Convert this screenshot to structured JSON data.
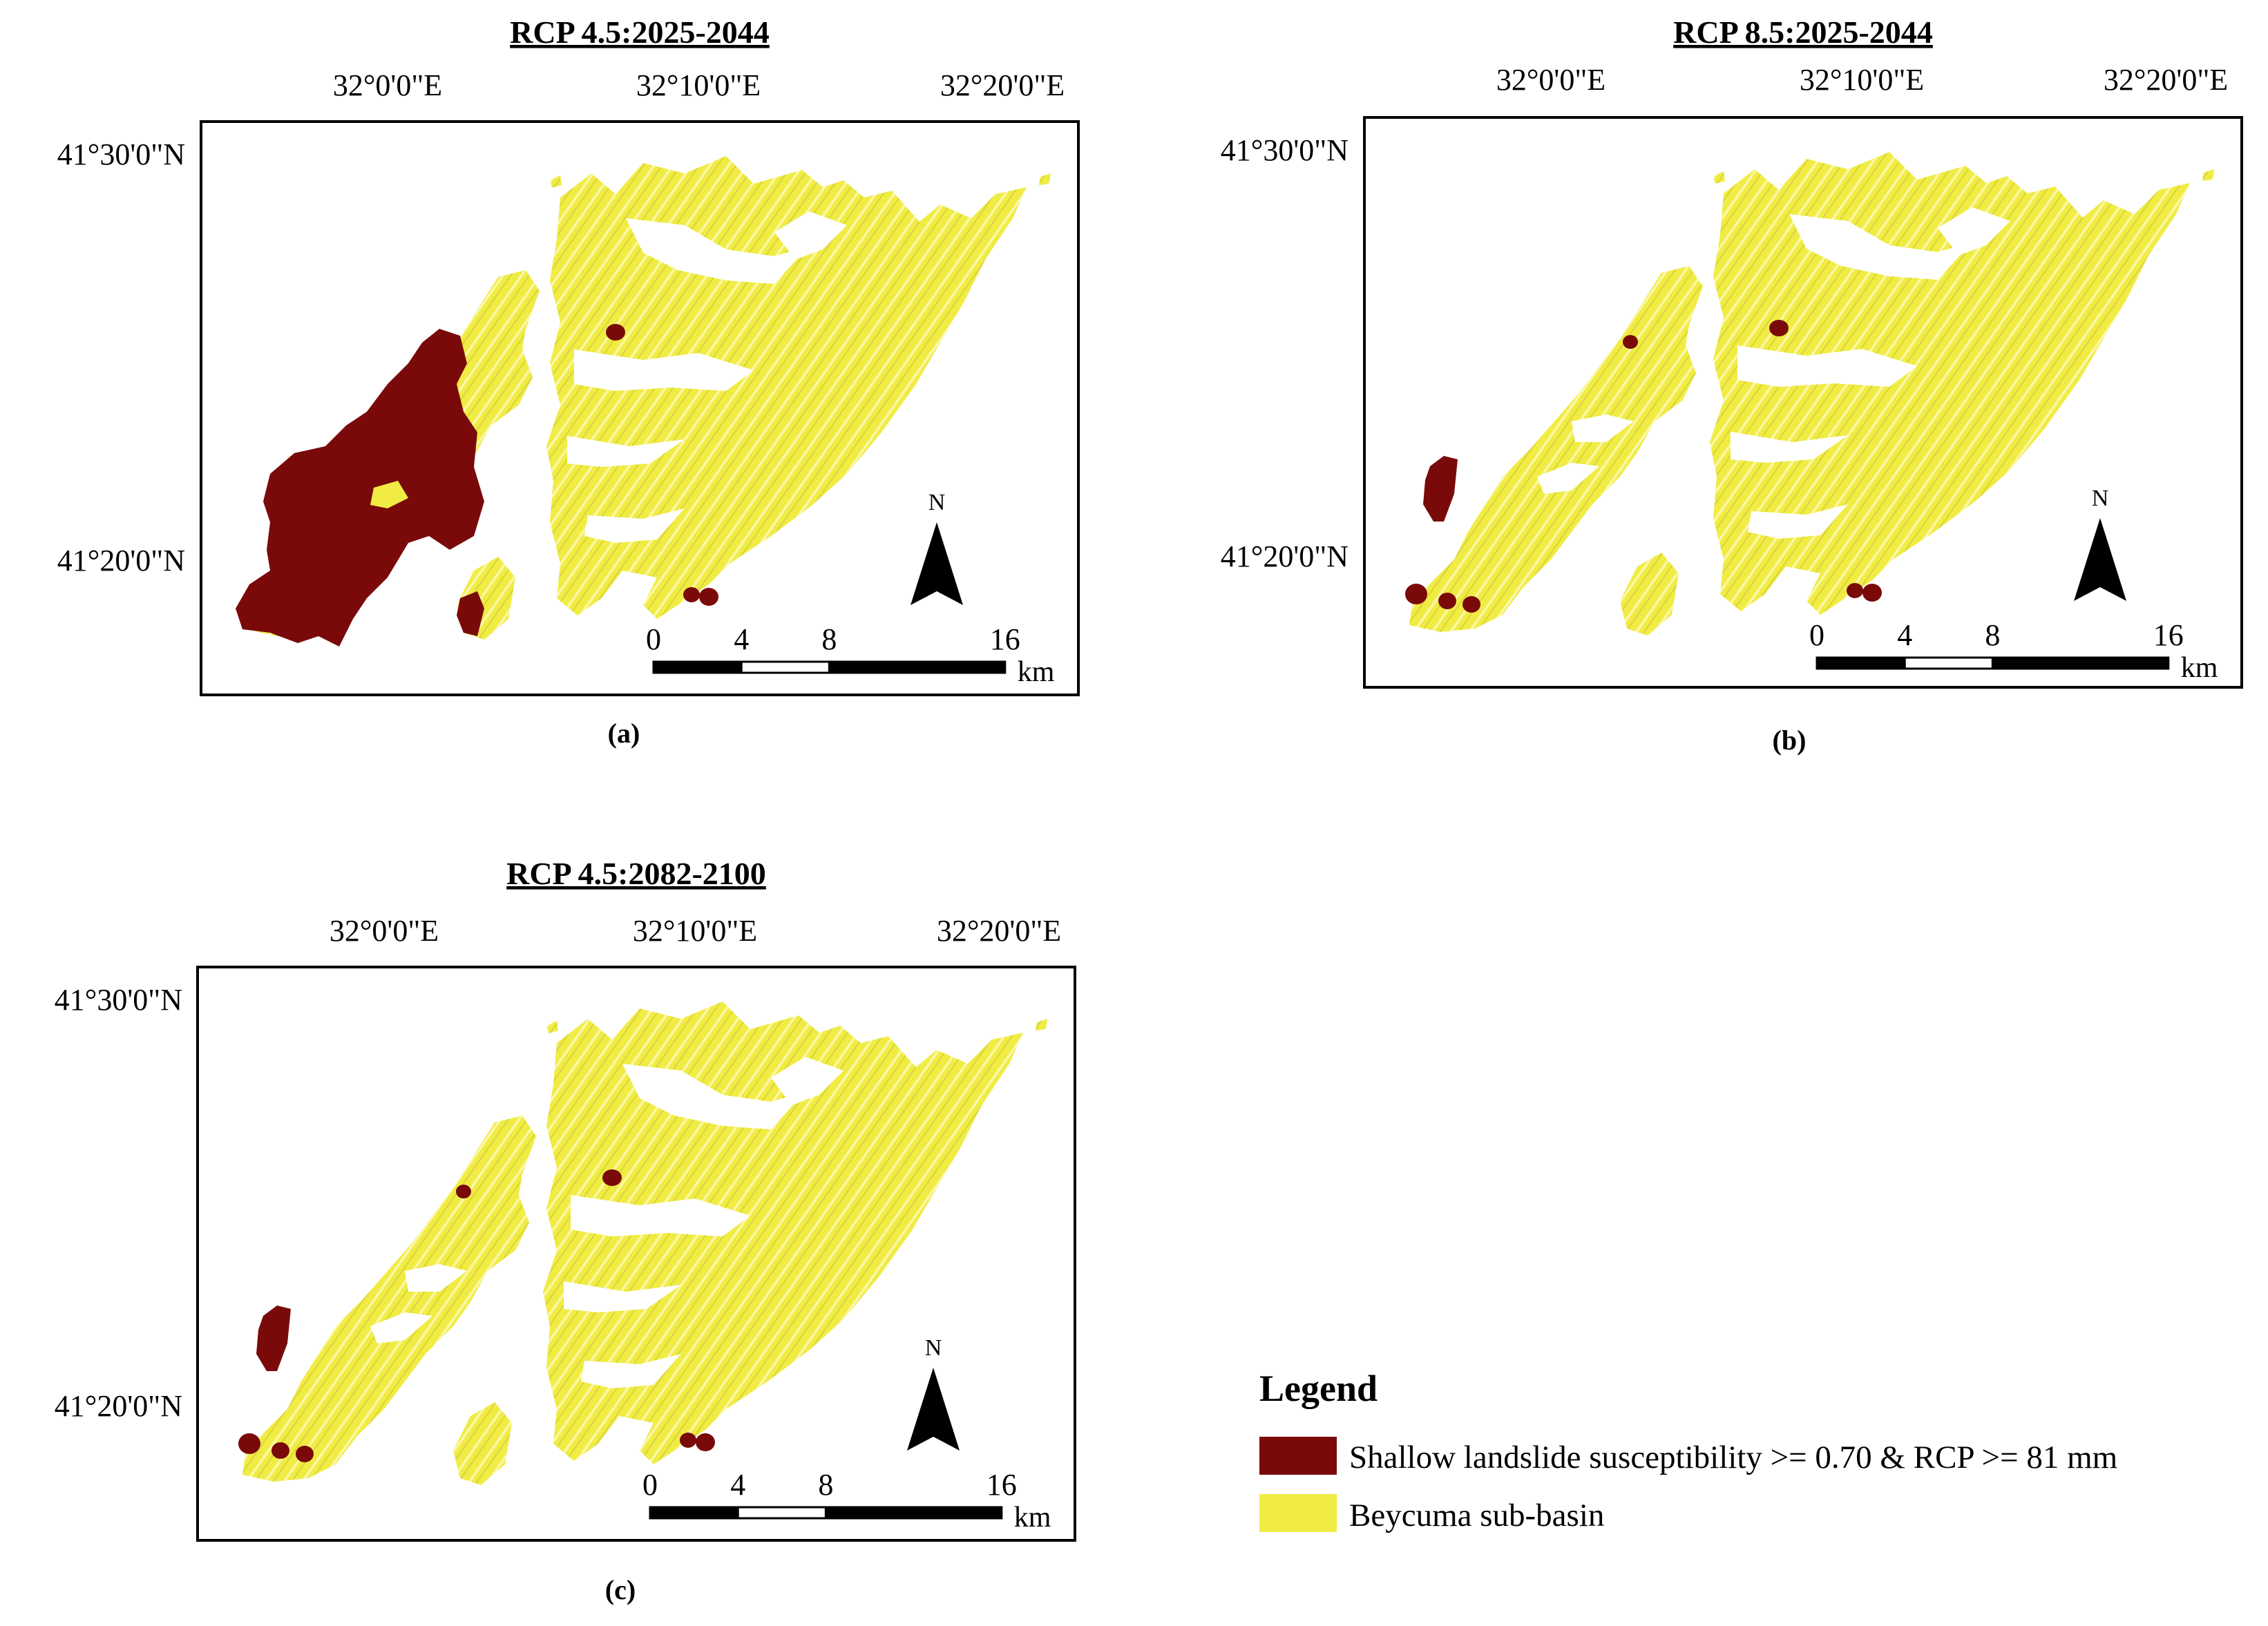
{
  "colors": {
    "landslide": "#7a0a0a",
    "basin": "#f0ec44",
    "basin_light": "#fbf7a8",
    "frame": "#000000"
  },
  "panels": [
    {
      "title": "RCP 4.5:2025-2044",
      "caption": "(a)",
      "lon_labels": [
        "32°0'0\"E",
        "32°10'0\"E",
        "32°20'0\"E"
      ],
      "lat_labels": [
        "41°30'0\"N",
        "41°20'0\"N"
      ],
      "north_label": "N",
      "scale_ticks": [
        "0",
        "4",
        "8",
        "16"
      ],
      "scale_unit": "km",
      "scenario": "large"
    },
    {
      "title": "RCP 8.5:2025-2044",
      "caption": "(b)",
      "lon_labels": [
        "32°0'0\"E",
        "32°10'0\"E",
        "32°20'0\"E"
      ],
      "lat_labels": [
        "41°30'0\"N",
        "41°20'0\"N"
      ],
      "north_label": "N",
      "scale_ticks": [
        "0",
        "4",
        "8",
        "16"
      ],
      "scale_unit": "km",
      "scenario": "small"
    },
    {
      "title": "RCP 4.5:2082-2100",
      "caption": "(c)",
      "lon_labels": [
        "32°0'0\"E",
        "32°10'0\"E",
        "32°20'0\"E"
      ],
      "lat_labels": [
        "41°30'0\"N",
        "41°20'0\"N"
      ],
      "north_label": "N",
      "scale_ticks": [
        "0",
        "4",
        "8",
        "16"
      ],
      "scale_unit": "km",
      "scenario": "small"
    }
  ],
  "legend": {
    "title": "Legend",
    "items": [
      {
        "label": "Shallow landslide susceptibility >= 0.70 & RCP >= 81 mm",
        "swatch": "landslide"
      },
      {
        "label": "Beycuma sub-basin",
        "swatch": "basin"
      }
    ]
  }
}
